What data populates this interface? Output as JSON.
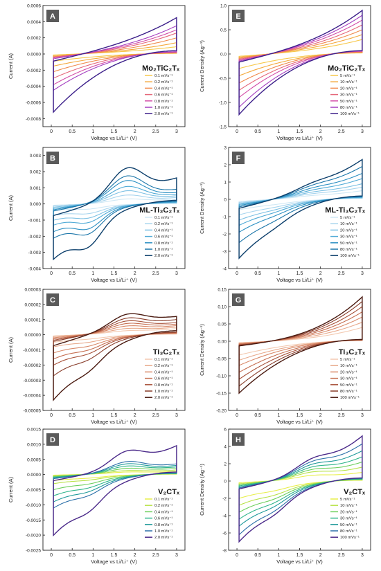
{
  "colors": {
    "badge_bg": "#5a5a5a",
    "badge_text": "#ffffff",
    "axis": "#222222"
  },
  "chart_data": [
    {
      "panel": "A",
      "type": "line",
      "material": "Mo₂TiC₂Tₓ",
      "ylabel": "Current (A)",
      "xlabel": "Voltage vs Li/Li⁺ (V)",
      "xlim": [
        -0.2,
        3.2
      ],
      "ylim": [
        -0.0009,
        0.0006
      ],
      "xticks": [
        0.0,
        0.5,
        1.0,
        1.5,
        2.0,
        2.5,
        3.0
      ],
      "yticks": [
        -0.0008,
        -0.0006,
        -0.0004,
        -0.0002,
        0.0,
        0.0002,
        0.0004,
        0.0006
      ],
      "ytick_labels": [
        "-0.0008",
        "-0.0006",
        "-0.0004",
        "-0.0002",
        "0.0000",
        "0.0002",
        "0.0004",
        "0.0006"
      ],
      "series": [
        {
          "name": "0.1 mVs⁻¹",
          "color": "#f7c84a",
          "ia": -3e-05,
          "ib": 5e-05,
          "ic": -9e-05,
          "id": 9e-05,
          "bump": 0
        },
        {
          "name": "0.2 mVs⁻¹",
          "color": "#f4a93c",
          "ia": -5e-05,
          "ib": 7e-05,
          "ic": -0.00015,
          "id": 0.00014,
          "bump": 0
        },
        {
          "name": "0.4 mVs⁻¹",
          "color": "#f08a4b",
          "ia": -8e-05,
          "ib": 0.0001,
          "ic": -0.00022,
          "id": 0.0002,
          "bump": 0
        },
        {
          "name": "0.6 mVs⁻¹",
          "color": "#e5687a",
          "ia": -0.0001,
          "ib": 0.00013,
          "ic": -0.0003,
          "id": 0.00026,
          "bump": 0
        },
        {
          "name": "0.8 mVs⁻¹",
          "color": "#d34ea8",
          "ia": -0.00012,
          "ib": 0.00016,
          "ic": -0.00038,
          "id": 0.0003,
          "bump": 0
        },
        {
          "name": "1.0 mVs⁻¹",
          "color": "#a43fc0",
          "ia": -0.00015,
          "ib": 0.00019,
          "ic": -0.00045,
          "id": 0.00035,
          "bump": 0
        },
        {
          "name": "2.0 mVs⁻¹",
          "color": "#3c1f8a",
          "ia": -0.00022,
          "ib": 0.00028,
          "ic": -0.00072,
          "id": 0.00045,
          "bump": 0
        }
      ]
    },
    {
      "panel": "E",
      "type": "line",
      "material": "Mo₂TiC₂Tₓ",
      "ylabel": "Current Density (Ag⁻¹)",
      "xlabel": "Voltage vs Li/Li⁺ (V)",
      "xlim": [
        -0.2,
        3.2
      ],
      "ylim": [
        -1.5,
        1.0
      ],
      "xticks": [
        0.0,
        0.5,
        1.0,
        1.5,
        2.0,
        2.5,
        3.0
      ],
      "yticks": [
        -1.5,
        -1.0,
        -0.5,
        0.0,
        0.5,
        1.0
      ],
      "ytick_labels": [
        "-1.5",
        "-1.0",
        "-0.5",
        "0.0",
        "0.5",
        "1.0"
      ],
      "series": [
        {
          "name": "5 mVs⁻¹",
          "color": "#f7c84a",
          "ia": -0.12,
          "ib": 0.14,
          "ic": -0.3,
          "id": 0.3,
          "bump": 0
        },
        {
          "name": "10 mVs⁻¹",
          "color": "#f4a93c",
          "ia": -0.17,
          "ib": 0.2,
          "ic": -0.45,
          "id": 0.4,
          "bump": 0
        },
        {
          "name": "20 mVs⁻¹",
          "color": "#f08a4b",
          "ia": -0.22,
          "ib": 0.26,
          "ic": -0.6,
          "id": 0.5,
          "bump": 0
        },
        {
          "name": "30 mVs⁻¹",
          "color": "#e5687a",
          "ia": -0.27,
          "ib": 0.31,
          "ic": -0.75,
          "id": 0.6,
          "bump": 0
        },
        {
          "name": "50 mVs⁻¹",
          "color": "#d34ea8",
          "ia": -0.32,
          "ib": 0.37,
          "ic": -0.9,
          "id": 0.7,
          "bump": 0
        },
        {
          "name": "80 mVs⁻¹",
          "color": "#a43fc0",
          "ia": -0.37,
          "ib": 0.42,
          "ic": -1.1,
          "id": 0.8,
          "bump": 0
        },
        {
          "name": "100 mVs⁻¹",
          "color": "#3c1f8a",
          "ia": -0.42,
          "ib": 0.47,
          "ic": -1.25,
          "id": 0.9,
          "bump": 0
        }
      ]
    },
    {
      "panel": "B",
      "type": "line",
      "material": "ML-Ti₃C₂Tₓ",
      "ylabel": "Current (A)",
      "xlabel": "Voltage vs Li/Li⁺ (V)",
      "xlim": [
        -0.2,
        3.2
      ],
      "ylim": [
        -0.004,
        0.0035
      ],
      "xticks": [
        0.0,
        0.5,
        1.0,
        1.5,
        2.0,
        2.5,
        3.0
      ],
      "yticks": [
        -0.004,
        -0.003,
        -0.002,
        -0.001,
        0.0,
        0.001,
        0.002,
        0.003
      ],
      "ytick_labels": [
        "-0.004",
        "-0.003",
        "-0.002",
        "-0.001",
        "0.000",
        "0.001",
        "0.002",
        "0.003"
      ],
      "series": [
        {
          "name": "0.1 mVs⁻¹",
          "color": "#cfe8f5",
          "ia": -0.0002,
          "ib": 0.0002,
          "ic": -0.0004,
          "id": 0.0003,
          "bump": 0.0002
        },
        {
          "name": "0.2 mVs⁻¹",
          "color": "#a8d5ee",
          "ia": -0.0003,
          "ib": 0.0003,
          "ic": -0.0007,
          "id": 0.0004,
          "bump": 0.0004
        },
        {
          "name": "0.4 mVs⁻¹",
          "color": "#7dc1e4",
          "ia": -0.0005,
          "ib": 0.0005,
          "ic": -0.001,
          "id": 0.0005,
          "bump": 0.0006
        },
        {
          "name": "0.6 mVs⁻¹",
          "color": "#4faad6",
          "ia": -0.0007,
          "ib": 0.0007,
          "ic": -0.0013,
          "id": 0.0006,
          "bump": 0.0008
        },
        {
          "name": "0.8 mVs⁻¹",
          "color": "#2a8fc2",
          "ia": -0.0009,
          "ib": 0.0009,
          "ic": -0.0017,
          "id": 0.0007,
          "bump": 0.0011
        },
        {
          "name": "1.0 mVs⁻¹",
          "color": "#1874a8",
          "ia": -0.0011,
          "ib": 0.0011,
          "ic": -0.0021,
          "id": 0.0009,
          "bump": 0.0013
        },
        {
          "name": "2.0 mVs⁻¹",
          "color": "#0b3e6b",
          "ia": -0.0018,
          "ib": 0.0015,
          "ic": -0.0034,
          "id": 0.0016,
          "bump": 0.0016
        }
      ]
    },
    {
      "panel": "F",
      "type": "line",
      "material": "ML-Ti₃C₂Tₓ",
      "ylabel": "Current Density (Ag⁻¹)",
      "xlabel": "Voltage vs Li/Li⁺ (V)",
      "xlim": [
        -0.2,
        3.2
      ],
      "ylim": [
        -4,
        3
      ],
      "xticks": [
        0.0,
        0.5,
        1.0,
        1.5,
        2.0,
        2.5,
        3.0
      ],
      "yticks": [
        -4,
        -3,
        -2,
        -1,
        0,
        1,
        2,
        3
      ],
      "ytick_labels": [
        "-4",
        "-3",
        "-2",
        "-1",
        "0",
        "1",
        "2",
        "3"
      ],
      "series": [
        {
          "name": "5 mVs⁻¹",
          "color": "#cfe8f5",
          "ia": -0.3,
          "ib": 0.3,
          "ic": -0.6,
          "id": 0.5,
          "bump": 0.05
        },
        {
          "name": "10 mVs⁻¹",
          "color": "#a8d5ee",
          "ia": -0.45,
          "ib": 0.45,
          "ic": -0.9,
          "id": 0.7,
          "bump": 0.08
        },
        {
          "name": "20 mVs⁻¹",
          "color": "#7dc1e4",
          "ia": -0.6,
          "ib": 0.6,
          "ic": -1.2,
          "id": 0.9,
          "bump": 0.1
        },
        {
          "name": "30 mVs⁻¹",
          "color": "#4faad6",
          "ia": -0.75,
          "ib": 0.75,
          "ic": -1.5,
          "id": 1.2,
          "bump": 0.12
        },
        {
          "name": "50 mVs⁻¹",
          "color": "#2a8fc2",
          "ia": -0.9,
          "ib": 0.9,
          "ic": -1.9,
          "id": 1.5,
          "bump": 0.15
        },
        {
          "name": "80 mVs⁻¹",
          "color": "#1874a8",
          "ia": -1.1,
          "ib": 1.1,
          "ic": -2.5,
          "id": 1.9,
          "bump": 0.18
        },
        {
          "name": "100 mVs⁻¹",
          "color": "#0b3e6b",
          "ia": -1.3,
          "ib": 1.3,
          "ic": -3.4,
          "id": 2.3,
          "bump": 0.2
        }
      ]
    },
    {
      "panel": "C",
      "type": "line",
      "material": "Ti₃C₂Tₓ",
      "ylabel": "Current (A)",
      "xlabel": "Voltage vs Li/Li⁺ (V)",
      "xlim": [
        -0.2,
        3.2
      ],
      "ylim": [
        -5e-05,
        3e-05
      ],
      "xticks": [
        0.0,
        0.5,
        1.0,
        1.5,
        2.0,
        2.5,
        3.0
      ],
      "yticks": [
        -5e-05,
        -4e-05,
        -3e-05,
        -2e-05,
        -1e-05,
        0.0,
        1e-05,
        2e-05,
        3e-05
      ],
      "ytick_labels": [
        "-0.00005",
        "-0.00004",
        "-0.00003",
        "-0.00002",
        "-0.00001",
        "0.00000",
        "0.00001",
        "0.00002",
        "0.00003"
      ],
      "series": [
        {
          "name": "0.1 mVs⁻¹",
          "color": "#f3c9b0",
          "ia": -2e-06,
          "ib": 3e-06,
          "ic": -5e-06,
          "id": 4e-06,
          "bump": 1e-06
        },
        {
          "name": "0.2 mVs⁻¹",
          "color": "#e8a98b",
          "ia": -3e-06,
          "ib": 4e-06,
          "ic": -8e-06,
          "id": 5e-06,
          "bump": 2e-06
        },
        {
          "name": "0.4 mVs⁻¹",
          "color": "#d98a6a",
          "ia": -5e-06,
          "ib": 6e-06,
          "ic": -1.2e-05,
          "id": 6e-06,
          "bump": 3e-06
        },
        {
          "name": "0.6 mVs⁻¹",
          "color": "#c56e50",
          "ia": -7e-06,
          "ib": 8e-06,
          "ic": -1.6e-05,
          "id": 7e-06,
          "bump": 4e-06
        },
        {
          "name": "0.8 mVs⁻¹",
          "color": "#a8523a",
          "ia": -9e-06,
          "ib": 1e-05,
          "ic": -2e-05,
          "id": 8e-06,
          "bump": 5e-06
        },
        {
          "name": "1.0 mVs⁻¹",
          "color": "#873b28",
          "ia": -1.1e-05,
          "ib": 1.2e-05,
          "ic": -2.7e-05,
          "id": 1e-05,
          "bump": 6e-06
        },
        {
          "name": "2.0 mVs⁻¹",
          "color": "#4a1a10",
          "ia": -1.8e-05,
          "ib": 1.8e-05,
          "ic": -4.3e-05,
          "id": 1.2e-05,
          "bump": 7e-06
        }
      ]
    },
    {
      "panel": "G",
      "type": "line",
      "material": "Ti₃C₂Tₓ",
      "ylabel": "Current Density (Ag⁻¹)",
      "xlabel": "Voltage vs Li/Li⁺ (V)",
      "xlim": [
        -0.2,
        3.2
      ],
      "ylim": [
        -0.2,
        0.15
      ],
      "xticks": [
        0.0,
        0.5,
        1.0,
        1.5,
        2.0,
        2.5,
        3.0
      ],
      "yticks": [
        -0.2,
        -0.15,
        -0.1,
        -0.05,
        0.0,
        0.05,
        0.1,
        0.15
      ],
      "ytick_labels": [
        "-0.20",
        "-0.15",
        "-0.10",
        "-0.05",
        "0.00",
        "0.05",
        "0.10",
        "0.15"
      ],
      "series": [
        {
          "name": "5 mVs⁻¹",
          "color": "#f3c9b0",
          "ia": -0.01,
          "ib": 0.01,
          "ic": -0.04,
          "id": 0.04,
          "bump": 0
        },
        {
          "name": "10 mVs⁻¹",
          "color": "#e8a98b",
          "ia": -0.014,
          "ib": 0.014,
          "ic": -0.055,
          "id": 0.055,
          "bump": 0
        },
        {
          "name": "20 mVs⁻¹",
          "color": "#d98a6a",
          "ia": -0.018,
          "ib": 0.018,
          "ic": -0.07,
          "id": 0.07,
          "bump": 0
        },
        {
          "name": "30 mVs⁻¹",
          "color": "#c56e50",
          "ia": -0.022,
          "ib": 0.022,
          "ic": -0.09,
          "id": 0.085,
          "bump": 0
        },
        {
          "name": "50 mVs⁻¹",
          "color": "#a8523a",
          "ia": -0.026,
          "ib": 0.026,
          "ic": -0.11,
          "id": 0.1,
          "bump": 0
        },
        {
          "name": "80 mVs⁻¹",
          "color": "#873b28",
          "ia": -0.03,
          "ib": 0.03,
          "ic": -0.13,
          "id": 0.115,
          "bump": 0
        },
        {
          "name": "100 mVs⁻¹",
          "color": "#4a1a10",
          "ia": -0.034,
          "ib": 0.034,
          "ic": -0.15,
          "id": 0.128,
          "bump": 0
        }
      ]
    },
    {
      "panel": "D",
      "type": "line",
      "material": "V₂CTₓ",
      "ylabel": "Current (A)",
      "xlabel": "Voltage vs Li/Li⁺ (V)",
      "xlim": [
        -0.2,
        3.2
      ],
      "ylim": [
        -0.0025,
        0.0015
      ],
      "xticks": [
        0.0,
        0.5,
        1.0,
        1.5,
        2.0,
        2.5,
        3.0
      ],
      "yticks": [
        -0.0025,
        -0.002,
        -0.0015,
        -0.001,
        -0.0005,
        0.0,
        0.0005,
        0.001,
        0.0015
      ],
      "ytick_labels": [
        "-0.0025",
        "-0.0020",
        "-0.0015",
        "-0.0010",
        "-0.0005",
        "0.0000",
        "0.0005",
        "0.0010",
        "0.0015"
      ],
      "series": [
        {
          "name": "0.1 mVs⁻¹",
          "color": "#e8ef4a",
          "ia": -5e-05,
          "ib": 8e-05,
          "ic": -0.0002,
          "id": 0.0001,
          "bump": 4e-05
        },
        {
          "name": "0.2 mVs⁻¹",
          "color": "#b9e24a",
          "ia": -0.0001,
          "ib": 0.00012,
          "ic": -0.0003,
          "id": 0.00015,
          "bump": 7e-05
        },
        {
          "name": "0.4 mVs⁻¹",
          "color": "#6ccf5c",
          "ia": -0.00016,
          "ib": 0.00018,
          "ic": -0.0005,
          "id": 0.0002,
          "bump": 0.00012
        },
        {
          "name": "0.6 mVs⁻¹",
          "color": "#2fb58a",
          "ia": -0.00022,
          "ib": 0.00024,
          "ic": -0.0007,
          "id": 0.00025,
          "bump": 0.00017
        },
        {
          "name": "0.8 mVs⁻¹",
          "color": "#1f9a9a",
          "ia": -0.00028,
          "ib": 0.0003,
          "ic": -0.0009,
          "id": 0.0003,
          "bump": 0.00022
        },
        {
          "name": "1.0 mVs⁻¹",
          "color": "#2a6fa8",
          "ia": -0.00034,
          "ib": 0.00036,
          "ic": -0.0011,
          "id": 0.00035,
          "bump": 0.00027
        },
        {
          "name": "2.0 mVs⁻¹",
          "color": "#4b2a8a",
          "ia": -0.0005,
          "ib": 0.00055,
          "ic": -0.002,
          "id": 0.00095,
          "bump": 0.00045
        }
      ]
    },
    {
      "panel": "H",
      "type": "line",
      "material": "V₂CTₓ",
      "ylabel": "Current Density (Ag⁻¹)",
      "xlabel": "Voltage vs Li/Li⁺ (V)",
      "xlim": [
        -0.2,
        3.2
      ],
      "ylim": [
        -8,
        6
      ],
      "xticks": [
        0.0,
        0.5,
        1.0,
        1.5,
        2.0,
        2.5,
        3.0
      ],
      "yticks": [
        -8,
        -6,
        -4,
        -2,
        0,
        2,
        4,
        6
      ],
      "ytick_labels": [
        "-8",
        "-6",
        "-4",
        "-2",
        "0",
        "2",
        "4",
        "6"
      ],
      "series": [
        {
          "name": "5 mVs⁻¹",
          "color": "#e8ef4a",
          "ia": -0.5,
          "ib": 0.6,
          "ic": -2.0,
          "id": 1.0,
          "bump": 0.3
        },
        {
          "name": "10 mVs⁻¹",
          "color": "#b9e24a",
          "ia": -0.8,
          "ib": 0.9,
          "ic": -2.8,
          "id": 1.6,
          "bump": 0.5
        },
        {
          "name": "20 mVs⁻¹",
          "color": "#6ccf5c",
          "ia": -1.1,
          "ib": 1.2,
          "ic": -3.6,
          "id": 2.2,
          "bump": 0.6
        },
        {
          "name": "30 mVs⁻¹",
          "color": "#2fb58a",
          "ia": -1.4,
          "ib": 1.5,
          "ic": -4.4,
          "id": 2.8,
          "bump": 0.7
        },
        {
          "name": "50 mVs⁻¹",
          "color": "#1f9a9a",
          "ia": -1.7,
          "ib": 1.8,
          "ic": -5.2,
          "id": 3.5,
          "bump": 0.8
        },
        {
          "name": "80 mVs⁻¹",
          "color": "#2a6fa8",
          "ia": -2.0,
          "ib": 2.1,
          "ic": -6.2,
          "id": 4.3,
          "bump": 0.9
        },
        {
          "name": "100 mVs⁻¹",
          "color": "#4b2a8a",
          "ia": -2.3,
          "ib": 2.4,
          "ic": -7.0,
          "id": 5.2,
          "bump": 1.0
        }
      ]
    }
  ]
}
